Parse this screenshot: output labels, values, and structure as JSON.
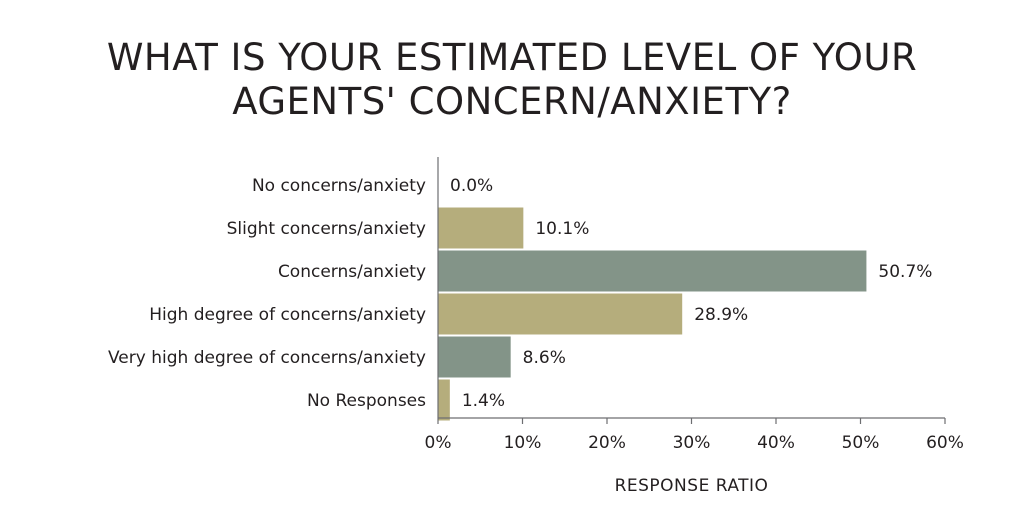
{
  "chart_data": {
    "type": "bar",
    "orientation": "horizontal",
    "title_lines": [
      "WHAT IS YOUR ESTIMATED LEVEL OF YOUR",
      "AGENTS' CONCERN/ANXIETY?"
    ],
    "xlabel": "RESPONSE RATIO",
    "xlim": [
      0,
      60
    ],
    "x_ticks": [
      "0%",
      "10%",
      "20%",
      "30%",
      "40%",
      "50%",
      "60%"
    ],
    "x_tick_values": [
      0,
      10,
      20,
      30,
      40,
      50,
      60
    ],
    "grid": false,
    "categories": [
      "No concerns/anxiety",
      "Slight concerns/anxiety",
      "Concerns/anxiety",
      "High degree of concerns/anxiety",
      "Very high degree of concerns/anxiety",
      "No Responses"
    ],
    "values": [
      0.0,
      10.1,
      50.7,
      28.9,
      8.6,
      1.4
    ],
    "value_labels": [
      "0.0%",
      "10.1%",
      "50.7%",
      "28.9%",
      "8.6%",
      "1.4%"
    ],
    "bar_colors": [
      "#b5ad7c",
      "#b5ad7c",
      "#839488",
      "#b5ad7c",
      "#839488",
      "#b5ad7c"
    ]
  }
}
